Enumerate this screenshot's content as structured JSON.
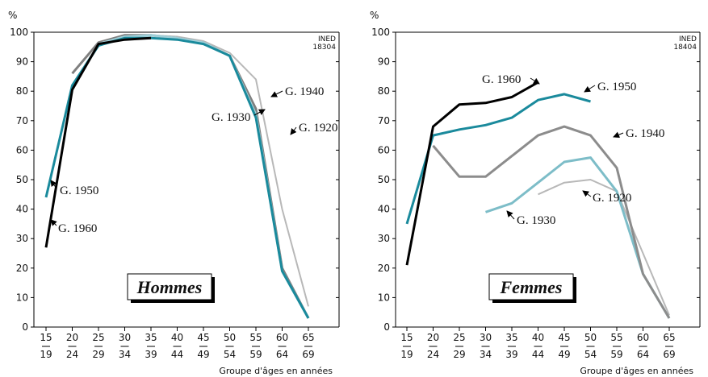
{
  "chart_data": [
    {
      "type": "line",
      "panel_label": "Hommes",
      "y_unit": "%",
      "xlabel": "Groupe d'âges en années",
      "ined_code": [
        "INED",
        "18304"
      ],
      "ylim": [
        0,
        100
      ],
      "yticks": [
        0,
        10,
        20,
        30,
        40,
        50,
        60,
        70,
        80,
        90,
        100
      ],
      "categories": [
        {
          "top": "15",
          "bottom": "19"
        },
        {
          "top": "20",
          "bottom": "24"
        },
        {
          "top": "25",
          "bottom": "29"
        },
        {
          "top": "30",
          "bottom": "34"
        },
        {
          "top": "35",
          "bottom": "39"
        },
        {
          "top": "40",
          "bottom": "44"
        },
        {
          "top": "45",
          "bottom": "49"
        },
        {
          "top": "50",
          "bottom": "54"
        },
        {
          "top": "55",
          "bottom": "59"
        },
        {
          "top": "60",
          "bottom": "64"
        },
        {
          "top": "65",
          "bottom": "69"
        }
      ],
      "series": [
        {
          "name": "G. 1920",
          "color": "#b8b8b8",
          "width": 2,
          "values": [
            null,
            null,
            null,
            null,
            99,
            98.5,
            97,
            93,
            84,
            40,
            7
          ]
        },
        {
          "name": "G. 1930",
          "color": "#7f7f7f",
          "width": 3,
          "values": [
            null,
            86,
            96.5,
            99,
            99,
            98,
            96.5,
            92,
            74,
            20,
            3
          ]
        },
        {
          "name": "G. 1940",
          "color": "#9fcfd8",
          "width": 3,
          "values": [
            null,
            null,
            96,
            98.5,
            99,
            98,
            96.5,
            92,
            72,
            19,
            3
          ]
        },
        {
          "name": "G. 1950",
          "color": "#1a8a9c",
          "width": 3,
          "values": [
            44,
            82,
            95.5,
            98,
            98,
            97.5,
            96,
            92,
            71,
            19,
            3
          ]
        },
        {
          "name": "G. 1960",
          "color": "#000000",
          "width": 3,
          "values": [
            27,
            80.5,
            96,
            97.5,
            98,
            null,
            null,
            null,
            null,
            null,
            null
          ]
        }
      ],
      "annotations": [
        {
          "text": "G. 1950"
        },
        {
          "text": "G. 1960"
        },
        {
          "text": "G. 1940"
        },
        {
          "text": "G. 1930"
        },
        {
          "text": "G. 1920"
        }
      ]
    },
    {
      "type": "line",
      "panel_label": "Femmes",
      "y_unit": "%",
      "xlabel": "Groupe d'âges en années",
      "ined_code": [
        "INED",
        "18404"
      ],
      "ylim": [
        0,
        100
      ],
      "yticks": [
        0,
        10,
        20,
        30,
        40,
        50,
        60,
        70,
        80,
        90,
        100
      ],
      "categories": [
        {
          "top": "15",
          "bottom": "19"
        },
        {
          "top": "20",
          "bottom": "24"
        },
        {
          "top": "25",
          "bottom": "29"
        },
        {
          "top": "30",
          "bottom": "34"
        },
        {
          "top": "35",
          "bottom": "39"
        },
        {
          "top": "40",
          "bottom": "44"
        },
        {
          "top": "45",
          "bottom": "49"
        },
        {
          "top": "50",
          "bottom": "54"
        },
        {
          "top": "55",
          "bottom": "59"
        },
        {
          "top": "60",
          "bottom": "64"
        },
        {
          "top": "65",
          "bottom": "69"
        }
      ],
      "series": [
        {
          "name": "G. 1920",
          "color": "#b8b8b8",
          "width": 2,
          "values": [
            null,
            null,
            null,
            null,
            null,
            45,
            49,
            50,
            46,
            25,
            4
          ]
        },
        {
          "name": "G. 1930",
          "color": "#7dbdc8",
          "width": 3,
          "values": [
            null,
            null,
            null,
            39,
            42,
            49,
            56,
            57.5,
            46,
            18,
            3
          ]
        },
        {
          "name": "G. 1940",
          "color": "#8c8c8c",
          "width": 3,
          "values": [
            null,
            61.5,
            51,
            51,
            58,
            65,
            68,
            65,
            54,
            18,
            3
          ]
        },
        {
          "name": "G. 1950",
          "color": "#1a8a9c",
          "width": 3,
          "values": [
            35,
            65,
            67,
            68.5,
            71,
            77,
            79,
            76.5,
            null,
            null,
            null
          ]
        },
        {
          "name": "G. 1960",
          "color": "#000000",
          "width": 3,
          "values": [
            21,
            68,
            75.5,
            76,
            78,
            83,
            null,
            null,
            null,
            null,
            null
          ]
        }
      ],
      "annotations": [
        {
          "text": "G. 1960"
        },
        {
          "text": "G. 1950"
        },
        {
          "text": "G. 1940"
        },
        {
          "text": "G. 1930"
        },
        {
          "text": "G. 1920"
        }
      ]
    }
  ]
}
